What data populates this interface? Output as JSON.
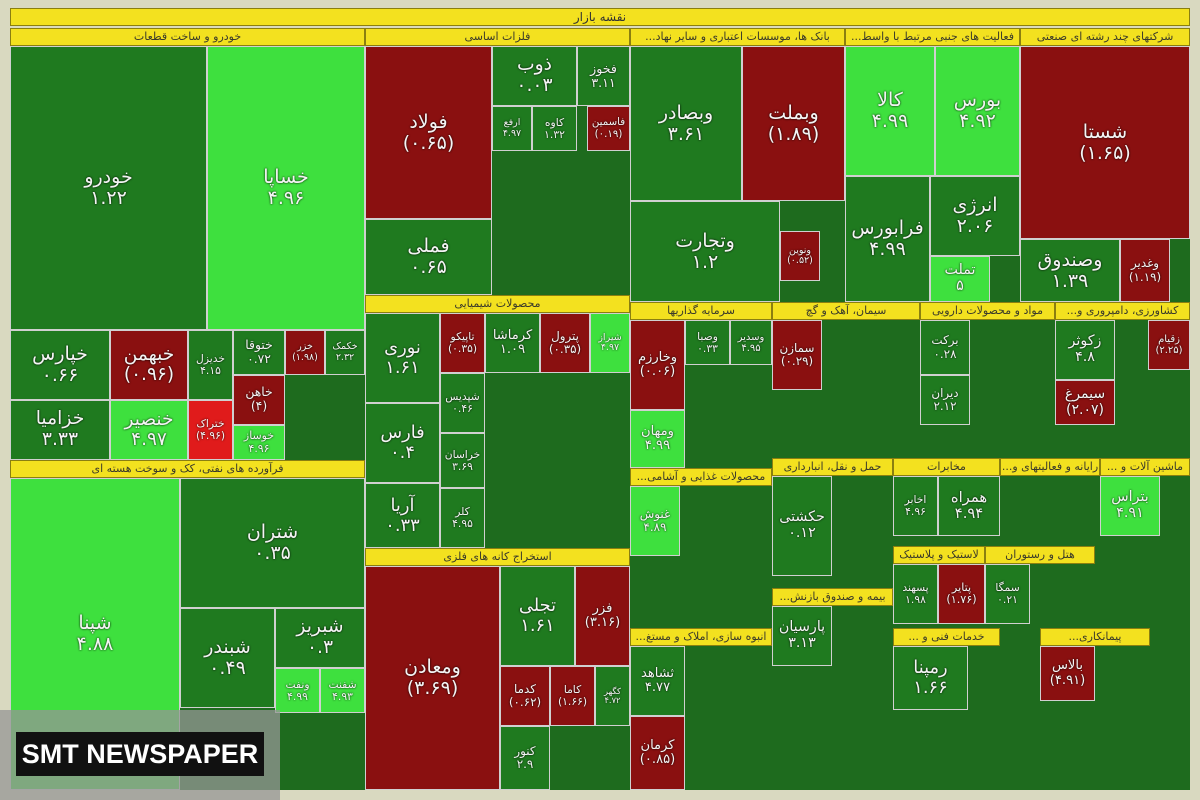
{
  "title": "نقشه بازار",
  "watermark": "SMT NEWSPAPER",
  "sectors": [
    {
      "label": "خودرو و ساخت قطعات",
      "tiles": [
        {
          "name": "خودرو",
          "change": "۱.۲۲",
          "color": "#1f7a1f"
        },
        {
          "name": "خساپا",
          "change": "۴.۹۶",
          "color": "#3ee03e"
        },
        {
          "name": "خپارس",
          "change": "۰.۶۶",
          "color": "#1f7a1f"
        },
        {
          "name": "خبهمن",
          "change": "(۰.۹۶)",
          "color": "#8a1010"
        },
        {
          "name": "خدیزل",
          "change": "۴.۱۵",
          "color": "#1f7a1f"
        },
        {
          "name": "ختوقا",
          "change": "۰.۷۲",
          "color": "#1f7a1f"
        },
        {
          "name": "خزر",
          "change": "(۱.۹۸)",
          "color": "#8a1010"
        },
        {
          "name": "خکمک",
          "change": "۲.۳۲",
          "color": "#1f7a1f"
        },
        {
          "name": "خزامیا",
          "change": "۳.۳۳",
          "color": "#1f7a1f"
        },
        {
          "name": "خنصیر",
          "change": "۴.۹۷",
          "color": "#3ee03e"
        },
        {
          "name": "ختراک",
          "change": "(۴.۹۶)",
          "color": "#e01b1b"
        },
        {
          "name": "خاهن",
          "change": "(۴)",
          "color": "#8a1010"
        },
        {
          "name": "خوساز",
          "change": "۴.۹۶",
          "color": "#3ee03e"
        }
      ]
    },
    {
      "label": "فلزات اساسی",
      "tiles": [
        {
          "name": "فولاد",
          "change": "(۰.۶۵)",
          "color": "#8a1010"
        },
        {
          "name": "فملی",
          "change": "۰.۶۵",
          "color": "#1f7a1f"
        },
        {
          "name": "ذوب",
          "change": "۰.۰۳",
          "color": "#1f7a1f"
        },
        {
          "name": "فخوز",
          "change": "۳.۱۱",
          "color": "#1f7a1f"
        },
        {
          "name": "ارفع",
          "change": "۴.۹۷",
          "color": "#1f7a1f"
        },
        {
          "name": "کاوه",
          "change": "۱.۳۲",
          "color": "#1f7a1f"
        },
        {
          "name": "فاسمین",
          "change": "(۰.۱۹)",
          "color": "#8a1010"
        }
      ]
    },
    {
      "label": "بانک ها، موسسات اعتباری و سایر نهاد...",
      "tiles": [
        {
          "name": "وبصادر",
          "change": "۳.۶۱",
          "color": "#1f7a1f"
        },
        {
          "name": "وبملت",
          "change": "(۱.۸۹)",
          "color": "#8a1010"
        },
        {
          "name": "وتجارت",
          "change": "۱.۲",
          "color": "#1f7a1f"
        },
        {
          "name": "ونوین",
          "change": "(۰.۵۲)",
          "color": "#8a1010"
        }
      ]
    },
    {
      "label": "فعالیت های جنبی مرتبط با واسط...",
      "tiles": [
        {
          "name": "کالا",
          "change": "۴.۹۹",
          "color": "#3ee03e"
        },
        {
          "name": "بورس",
          "change": "۴.۹۲",
          "color": "#3ee03e"
        },
        {
          "name": "فرابورس",
          "change": "۴.۹۹",
          "color": "#1f7a1f"
        },
        {
          "name": "انرژی",
          "change": "۲.۰۶",
          "color": "#1f7a1f"
        },
        {
          "name": "تملت",
          "change": "۵",
          "color": "#3ee03e"
        }
      ]
    },
    {
      "label": "شرکتهای چند رشته ای صنعتی",
      "tiles": [
        {
          "name": "شستا",
          "change": "(۱.۶۵)",
          "color": "#8a1010"
        },
        {
          "name": "وصندوق",
          "change": "۱.۳۹",
          "color": "#1f7a1f"
        },
        {
          "name": "وغدیر",
          "change": "(۱.۱۹)",
          "color": "#8a1010"
        }
      ]
    },
    {
      "label": "فرآورده های نفتی، کک و سوخت هسته ای",
      "tiles": [
        {
          "name": "شپنا",
          "change": "۴.۸۸",
          "color": "#3ee03e"
        },
        {
          "name": "شتران",
          "change": "۰.۳۵",
          "color": "#1f7a1f"
        },
        {
          "name": "شبندر",
          "change": "۰.۴۹",
          "color": "#1f7a1f"
        },
        {
          "name": "شبریز",
          "change": "۰.۳",
          "color": "#1f7a1f"
        },
        {
          "name": "ونفت",
          "change": "۴.۹۹",
          "color": "#3ee03e"
        },
        {
          "name": "شفنت",
          "change": "۴.۹۳",
          "color": "#3ee03e"
        }
      ]
    },
    {
      "label": "محصولات شیمیایی",
      "tiles": [
        {
          "name": "نوری",
          "change": "۱.۶۱",
          "color": "#1f7a1f"
        },
        {
          "name": "تاپیکو",
          "change": "(۰.۳۵)",
          "color": "#8a1010"
        },
        {
          "name": "کرماشا",
          "change": "۱.۰۹",
          "color": "#1f7a1f"
        },
        {
          "name": "پترول",
          "change": "(۰.۳۵)",
          "color": "#8a1010"
        },
        {
          "name": "شیراز",
          "change": "۴.۹۷",
          "color": "#3ee03e"
        },
        {
          "name": "فارس",
          "change": "۰.۴",
          "color": "#1f7a1f"
        },
        {
          "name": "آریا",
          "change": "۰.۳۳",
          "color": "#1f7a1f"
        },
        {
          "name": "شپدیس",
          "change": "۰.۴۶",
          "color": "#1f7a1f"
        },
        {
          "name": "خراسان",
          "change": "۳.۶۹",
          "color": "#1f7a1f"
        },
        {
          "name": "کلر",
          "change": "۴.۹۵",
          "color": "#1f7a1f"
        }
      ]
    },
    {
      "label": "استخراج کانه های فلزی",
      "tiles": [
        {
          "name": "ومعادن",
          "change": "(۳.۶۹)",
          "color": "#8a1010"
        },
        {
          "name": "تجلی",
          "change": "۱.۶۱",
          "color": "#1f7a1f"
        },
        {
          "name": "فزر",
          "change": "(۳.۱۶)",
          "color": "#8a1010"
        },
        {
          "name": "کدما",
          "change": "(۰.۶۲)",
          "color": "#8a1010"
        },
        {
          "name": "کاما",
          "change": "(۱.۶۶)",
          "color": "#8a1010"
        },
        {
          "name": "کگهر",
          "change": "۴.۷۲",
          "color": "#1f7a1f"
        },
        {
          "name": "کنور",
          "change": "۲.۹",
          "color": "#1f7a1f"
        }
      ]
    },
    {
      "label": "سرمایه گذاریها",
      "tiles": [
        {
          "name": "وخارزم",
          "change": "(۰.۰۶)",
          "color": "#8a1010"
        },
        {
          "name": "وصبا",
          "change": "۰.۳۳",
          "color": "#1f7a1f"
        },
        {
          "name": "وسدیر",
          "change": "۴.۹۵",
          "color": "#1f7a1f"
        },
        {
          "name": "ومهان",
          "change": "۴.۹۹",
          "color": "#3ee03e"
        }
      ]
    },
    {
      "label": "سیمان، آهک و گچ",
      "tiles": [
        {
          "name": "سمازن",
          "change": "(۰.۲۹)",
          "color": "#8a1010"
        }
      ]
    },
    {
      "label": "مواد و محصولات دارویی",
      "tiles": [
        {
          "name": "برکت",
          "change": "۰.۲۸",
          "color": "#1f7a1f"
        },
        {
          "name": "دیران",
          "change": "۲.۱۲",
          "color": "#1f7a1f"
        }
      ]
    },
    {
      "label": "کشاورزی، دامپروری و...",
      "tiles": [
        {
          "name": "زکوثر",
          "change": "۴.۸",
          "color": "#1f7a1f"
        },
        {
          "name": "زقیام",
          "change": "(۲.۲۵)",
          "color": "#8a1010"
        },
        {
          "name": "سیمرغ",
          "change": "(۲.۰۷)",
          "color": "#8a1010"
        }
      ]
    },
    {
      "label": "محصولات غذایی و آشامی...",
      "tiles": [
        {
          "name": "غنوش",
          "change": "۴.۸۹",
          "color": "#3ee03e"
        }
      ]
    },
    {
      "label": "حمل و نقل، انبارداری",
      "tiles": [
        {
          "name": "حکشتی",
          "change": "۰.۱۲",
          "color": "#1f7a1f"
        }
      ]
    },
    {
      "label": "مخابرات",
      "tiles": [
        {
          "name": "اخابر",
          "change": "۴.۹۶",
          "color": "#1f7a1f"
        },
        {
          "name": "همراه",
          "change": "۴.۹۴",
          "color": "#1f7a1f"
        }
      ]
    },
    {
      "label": "رایانه و فعالیتهای و...",
      "tiles": []
    },
    {
      "label": "ماشین آلات و ...",
      "tiles": [
        {
          "name": "بتراس",
          "change": "۴.۹۱",
          "color": "#3ee03e"
        }
      ]
    },
    {
      "label": "انبوه سازی، املاک و مستغ...",
      "tiles": [
        {
          "name": "ثشاهد",
          "change": "۴.۷۷",
          "color": "#1f7a1f"
        },
        {
          "name": "کرمان",
          "change": "(۰.۸۵)",
          "color": "#8a1010"
        }
      ]
    },
    {
      "label": "بیمه و صندوق بازنش...",
      "tiles": [
        {
          "name": "پارسیان",
          "change": "۳.۱۳",
          "color": "#1f7a1f"
        }
      ]
    },
    {
      "label": "لاستیک و پلاستیک",
      "tiles": [
        {
          "name": "پسهند",
          "change": "۱.۹۸",
          "color": "#1f7a1f"
        },
        {
          "name": "پتایر",
          "change": "(۱.۷۶)",
          "color": "#8a1010"
        }
      ]
    },
    {
      "label": "هتل و رستوران",
      "tiles": [
        {
          "name": "سمگا",
          "change": "۰.۲۱",
          "color": "#1f7a1f"
        }
      ]
    },
    {
      "label": "خدمات فنی و ...",
      "tiles": [
        {
          "name": "رمپنا",
          "change": "۱.۶۶",
          "color": "#1f7a1f"
        }
      ]
    },
    {
      "label": "پیمانکاری...",
      "tiles": [
        {
          "name": "بالاس",
          "change": "(۴.۹۱)",
          "color": "#8a1010"
        }
      ]
    }
  ]
}
